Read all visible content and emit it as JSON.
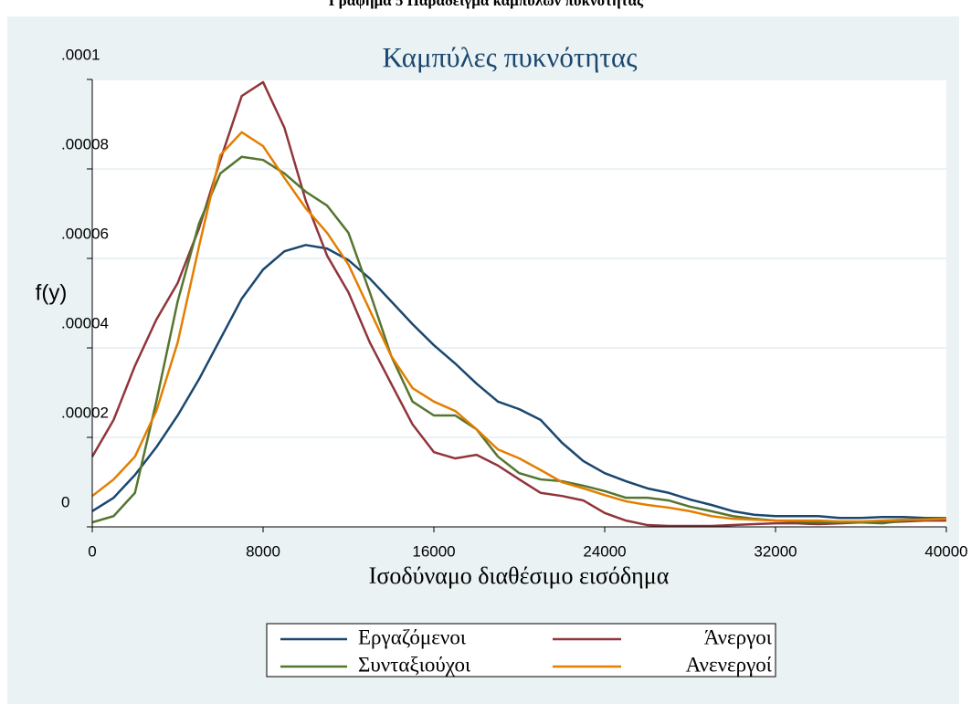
{
  "chart_data": {
    "type": "line",
    "caption": "Γράφημα 5 Παράδειγμα καμπυλών πυκνότητας",
    "title": "Καμπύλες πυκνότητας",
    "x_label": "Ισοδύναμο διαθέσιμο εισόδημα",
    "y_label": "f(y)",
    "xlim": [
      0,
      40000
    ],
    "xticks": [
      0,
      8000,
      16000,
      24000,
      32000,
      40000
    ],
    "ylim": [
      0,
      0.0001
    ],
    "yticks": [
      0,
      {
        "value": 2e-05,
        "label": ".00002"
      },
      {
        "value": 4e-05,
        "label": ".00004"
      },
      {
        "value": 6e-05,
        "label": ".00006"
      },
      {
        "value": 8e-05,
        "label": ".00008"
      },
      {
        "value": 0.0001,
        "label": ".0001"
      }
    ],
    "grid": true,
    "x": [
      0,
      1000,
      2000,
      3000,
      4000,
      5000,
      6000,
      7000,
      8000,
      9000,
      10000,
      11000,
      12000,
      13000,
      14000,
      15000,
      16000,
      17000,
      18000,
      19000,
      20000,
      21000,
      22000,
      23000,
      24000,
      25000,
      26000,
      27000,
      28000,
      29000,
      30000,
      31000,
      32000,
      33000,
      34000,
      35000,
      36000,
      37000,
      38000,
      39000,
      40000
    ],
    "series": [
      {
        "name": "Εργαζόμενοι",
        "color": "#1a476f",
        "values": [
          3.5e-06,
          6.5e-06,
          1.16e-05,
          1.78e-05,
          2.49e-05,
          3.3e-05,
          4.2e-05,
          5.1e-05,
          5.75e-05,
          6.16e-05,
          6.3e-05,
          6.22e-05,
          5.96e-05,
          5.55e-05,
          5.04e-05,
          4.53e-05,
          4.06e-05,
          3.65e-05,
          3.2e-05,
          2.8e-05,
          2.63e-05,
          2.39e-05,
          1.88e-05,
          1.47e-05,
          1.2e-05,
          1.02e-05,
          8.6e-06,
          7.6e-06,
          6.1e-06,
          4.9e-06,
          3.5e-06,
          2.7e-06,
          2.4e-06,
          2.4e-06,
          2.4e-06,
          2e-06,
          2e-06,
          2.2e-06,
          2.2e-06,
          2e-06,
          2e-06
        ]
      },
      {
        "name": "Άνεργοι",
        "color": "#90353b",
        "values": [
          1.57e-05,
          2.39e-05,
          3.6e-05,
          4.63e-05,
          5.45e-05,
          6.67e-05,
          8.2e-05,
          9.63e-05,
          9.94e-05,
          8.92e-05,
          7.29e-05,
          6.06e-05,
          5.24e-05,
          4.12e-05,
          3.2e-05,
          2.29e-05,
          1.67e-05,
          1.53e-05,
          1.61e-05,
          1.37e-05,
          1.06e-05,
          7.6e-06,
          6.9e-06,
          5.9e-06,
          3.1e-06,
          1.4e-06,
          4e-07,
          2e-07,
          2e-07,
          2e-07,
          4e-07,
          6e-07,
          8e-07,
          8e-07,
          6e-07,
          8e-07,
          1e-06,
          1e-06,
          1.2e-06,
          1.4e-06,
          1.4e-06
        ]
      },
      {
        "name": "Συνταξιούχοι",
        "color": "#55752f",
        "values": [
          1e-06,
          2.4e-06,
          7.6e-06,
          2.8e-05,
          5.04e-05,
          6.78e-05,
          7.9e-05,
          8.27e-05,
          8.2e-05,
          7.9e-05,
          7.49e-05,
          7.18e-05,
          6.57e-05,
          5.24e-05,
          3.82e-05,
          2.8e-05,
          2.49e-05,
          2.49e-05,
          2.18e-05,
          1.57e-05,
          1.2e-05,
          1.06e-05,
          1.02e-05,
          9.2e-06,
          8e-06,
          6.5e-06,
          6.5e-06,
          5.9e-06,
          4.5e-06,
          3.5e-06,
          2.4e-06,
          1.8e-06,
          1.4e-06,
          1.2e-06,
          1e-06,
          1e-06,
          1e-06,
          8e-07,
          1.4e-06,
          1.8e-06,
          2e-06
        ]
      },
      {
        "name": "Ανενεργοί",
        "color": "#e37e00",
        "values": [
          6.9e-06,
          1.06e-05,
          1.57e-05,
          2.59e-05,
          4.12e-05,
          6.27e-05,
          8.31e-05,
          8.82e-05,
          8.51e-05,
          7.8e-05,
          7.12e-05,
          6.57e-05,
          5.86e-05,
          4.84e-05,
          3.82e-05,
          3.1e-05,
          2.8e-05,
          2.59e-05,
          2.18e-05,
          1.73e-05,
          1.53e-05,
          1.27e-05,
          1e-05,
          8.6e-06,
          7.1e-06,
          5.7e-06,
          4.9e-06,
          4.3e-06,
          3.5e-06,
          2.4e-06,
          1.8e-06,
          1.6e-06,
          1.4e-06,
          1.4e-06,
          1.4e-06,
          1.2e-06,
          1.2e-06,
          1.4e-06,
          1.6e-06,
          1.6e-06,
          1.8e-06
        ]
      }
    ]
  }
}
